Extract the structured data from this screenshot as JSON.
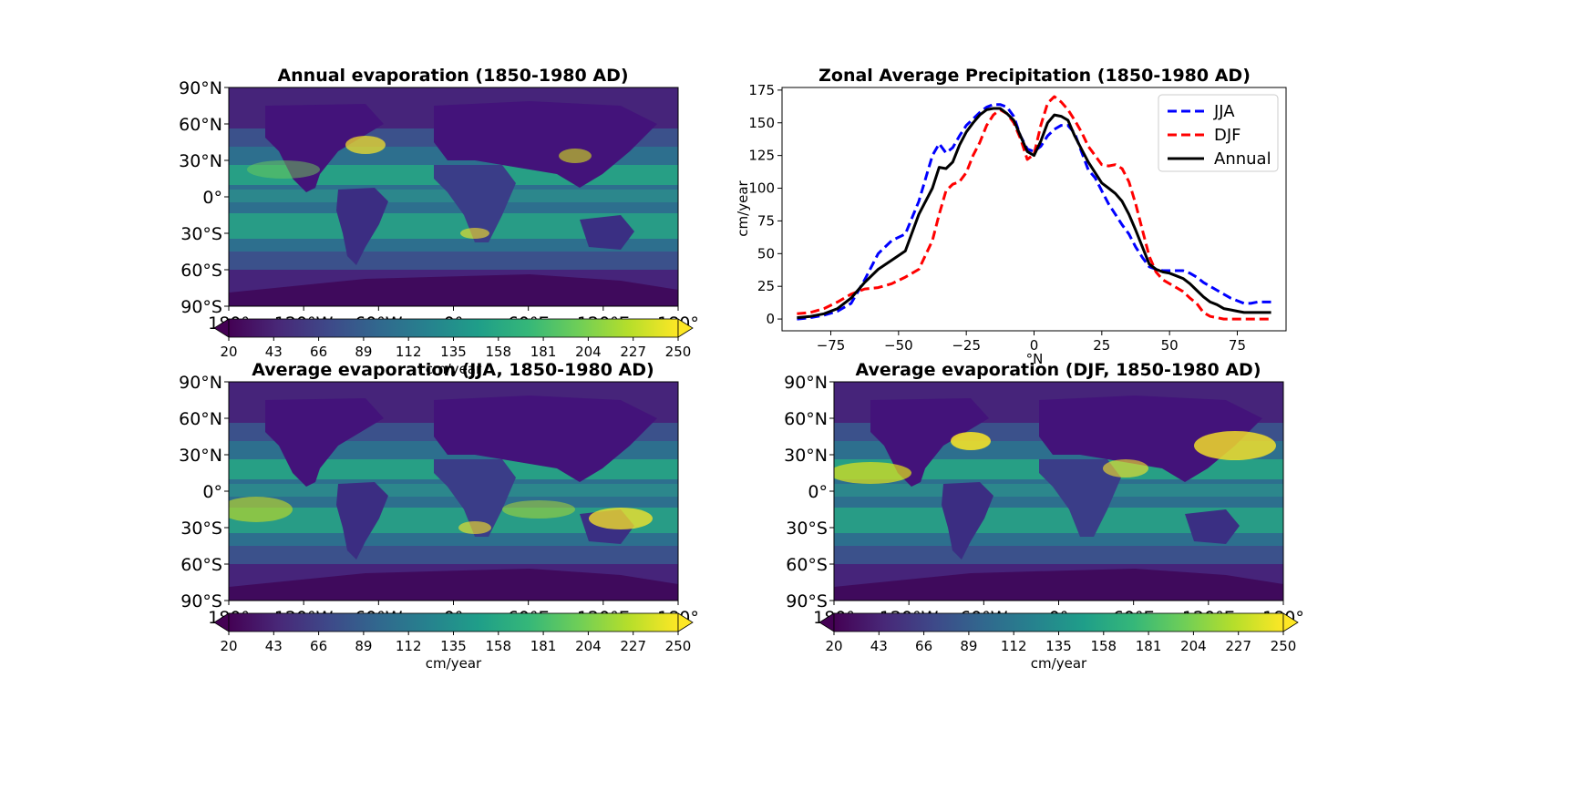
{
  "colors": {
    "viridis": [
      "#440154",
      "#482878",
      "#3e4989",
      "#31688e",
      "#26828e",
      "#1f9e89",
      "#35b779",
      "#6ece58",
      "#b5de2b",
      "#fde725"
    ],
    "jja": "#0000ff",
    "djf": "#ff0000",
    "annual": "#000000",
    "land": "#3b0b5e",
    "ocean_mid": "#2a7f8e"
  },
  "maps": [
    {
      "id": "annual",
      "title": "Annual evaporation (1850-1980 AD)",
      "lat_ticks": [
        "90°N",
        "60°N",
        "30°N",
        "0°",
        "30°S",
        "60°S",
        "90°S"
      ],
      "lon_ticks": [
        "180°",
        "120°W",
        "60°W",
        "0°",
        "60°E",
        "120°E",
        "180°"
      ],
      "colorbar": {
        "ticks": [
          "20",
          "43",
          "66",
          "89",
          "112",
          "135",
          "158",
          "181",
          "204",
          "227",
          "250"
        ],
        "label": "cm/year",
        "extend": "both"
      }
    },
    {
      "id": "jja",
      "title": "Average evaporation (JJA, 1850-1980 AD)",
      "lat_ticks": [
        "90°N",
        "60°N",
        "30°N",
        "0°",
        "30°S",
        "60°S",
        "90°S"
      ],
      "lon_ticks": [
        "180°",
        "120°W",
        "60°W",
        "0°",
        "60°E",
        "120°E",
        "180°"
      ],
      "colorbar": {
        "ticks": [
          "20",
          "43",
          "66",
          "89",
          "112",
          "135",
          "158",
          "181",
          "204",
          "227",
          "250"
        ],
        "label": "cm/year",
        "extend": "both"
      }
    },
    {
      "id": "djf",
      "title": "Average evaporation (DJF, 1850-1980 AD)",
      "lat_ticks": [
        "90°N",
        "60°N",
        "30°N",
        "0°",
        "30°S",
        "60°S",
        "90°S"
      ],
      "lon_ticks": [
        "180°",
        "120°W",
        "60°W",
        "0°",
        "60°E",
        "120°E",
        "180°"
      ],
      "colorbar": {
        "ticks": [
          "20",
          "43",
          "66",
          "89",
          "112",
          "135",
          "158",
          "181",
          "204",
          "227",
          "250"
        ],
        "label": "cm/year",
        "extend": "both"
      }
    }
  ],
  "chart_data": {
    "type": "line",
    "title": "Zonal Average Precipitation (1850-1980 AD)",
    "xlabel": "°N",
    "ylabel": "cm/year",
    "xlim": [
      -93,
      93
    ],
    "ylim": [
      -9,
      177
    ],
    "xticks": [
      -75,
      -50,
      -25,
      0,
      25,
      50,
      75
    ],
    "yticks": [
      0,
      25,
      50,
      75,
      100,
      125,
      150,
      175
    ],
    "legend_position": "top-right",
    "x": [
      -87.5,
      -82.5,
      -77.5,
      -72.5,
      -67.5,
      -62.5,
      -57.5,
      -52.5,
      -47.5,
      -42.5,
      -37.5,
      -35,
      -32.5,
      -30,
      -27.5,
      -25,
      -22.5,
      -20,
      -17.5,
      -15,
      -12.5,
      -10,
      -7.5,
      -5,
      -2.5,
      0,
      2.5,
      5,
      7.5,
      10,
      12.5,
      15,
      17.5,
      20,
      22.5,
      25,
      27.5,
      30,
      32.5,
      35,
      37.5,
      40,
      42.5,
      45,
      47.5,
      50,
      52.5,
      55,
      57.5,
      60,
      62.5,
      65,
      67.5,
      70,
      72.5,
      75,
      77.5,
      80,
      82.5,
      85,
      87.5
    ],
    "series": [
      {
        "name": "JJA",
        "style": "dashed",
        "values": [
          0,
          1,
          3,
          6,
          12,
          30,
          50,
          60,
          65,
          90,
          125,
          134,
          127,
          131,
          140,
          148,
          153,
          158,
          162,
          164,
          164,
          162,
          155,
          140,
          130,
          128,
          132,
          140,
          145,
          148,
          148,
          142,
          128,
          114,
          108,
          98,
          88,
          80,
          72,
          65,
          55,
          47,
          40,
          38,
          37,
          37,
          37,
          37,
          35,
          32,
          28,
          25,
          22,
          19,
          16,
          14,
          12,
          12,
          13,
          13,
          13
        ],
        "legend": "JJA"
      },
      {
        "name": "DJF",
        "style": "dashed",
        "values": [
          4,
          5,
          8,
          13,
          19,
          23,
          24,
          27,
          32,
          38,
          60,
          80,
          98,
          103,
          105,
          112,
          125,
          135,
          148,
          156,
          160,
          157,
          150,
          138,
          122,
          126,
          148,
          165,
          170,
          166,
          160,
          152,
          143,
          132,
          125,
          118,
          117,
          118,
          115,
          105,
          88,
          68,
          48,
          36,
          30,
          27,
          24,
          21,
          16,
          12,
          5,
          2,
          1,
          0,
          0,
          0,
          0,
          0,
          0,
          0,
          0
        ],
        "legend": "DJF"
      },
      {
        "name": "Annual",
        "style": "solid",
        "values": [
          1,
          2,
          4,
          8,
          16,
          28,
          38,
          45,
          52,
          80,
          100,
          116,
          115,
          120,
          133,
          143,
          150,
          156,
          160,
          161,
          161,
          157,
          152,
          140,
          128,
          125,
          136,
          150,
          156,
          155,
          152,
          140,
          130,
          120,
          112,
          104,
          100,
          96,
          90,
          80,
          68,
          55,
          42,
          38,
          36,
          35,
          33,
          31,
          27,
          22,
          17,
          13,
          11,
          8,
          7,
          6,
          5,
          5,
          5,
          5,
          5
        ],
        "legend": "Annual"
      }
    ]
  }
}
